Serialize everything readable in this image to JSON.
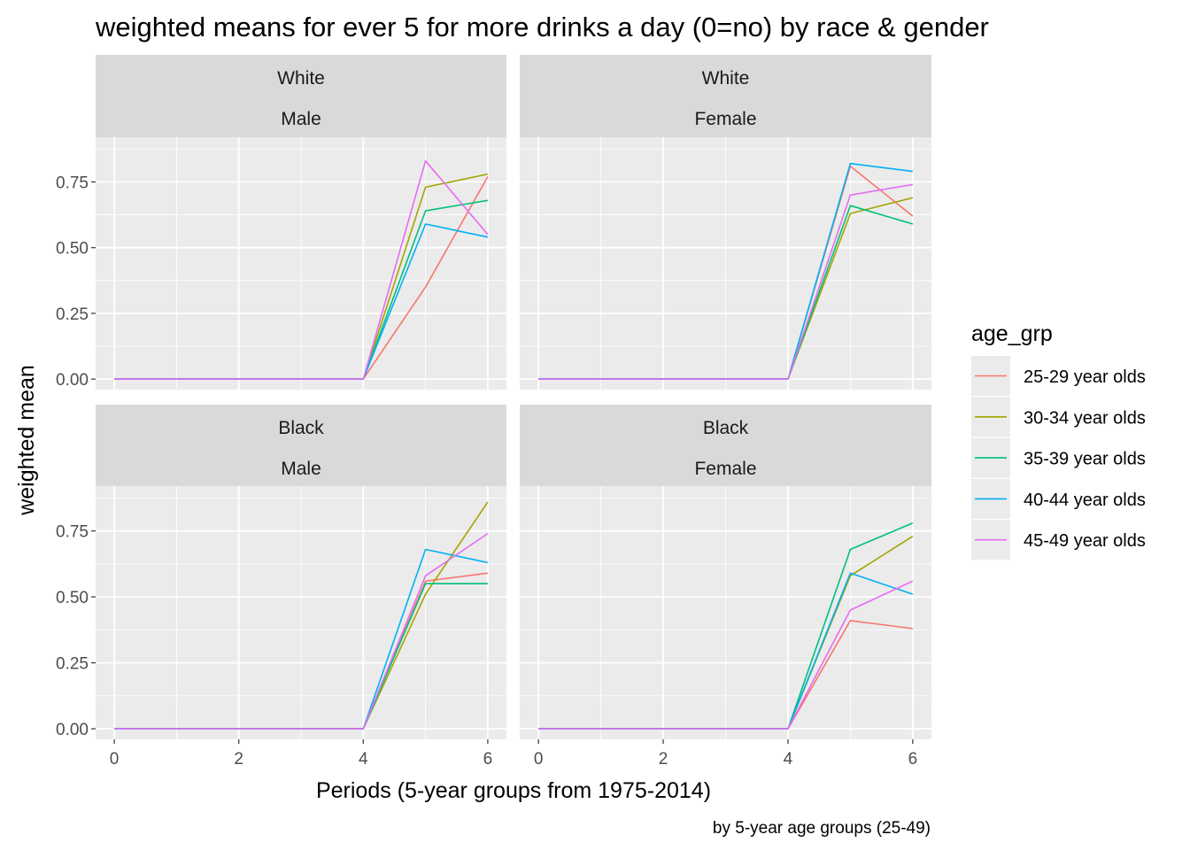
{
  "chart_data": {
    "type": "line",
    "title": "weighted means for ever 5 for more drinks a day (0=no) by race & gender",
    "xlabel": "Periods (5-year groups from 1975-2014)",
    "ylabel": "weighted mean",
    "caption": "by 5-year age groups (25-49)",
    "xlim": [
      -0.3,
      6.3
    ],
    "ylim": [
      -0.04,
      0.92
    ],
    "x_ticks": [
      0,
      2,
      4,
      6
    ],
    "x_tick_labels": [
      "0",
      "2",
      "4",
      "6"
    ],
    "y_ticks": [
      0,
      0.25,
      0.5,
      0.75
    ],
    "y_tick_labels": [
      "0.00",
      "0.25",
      "0.50",
      "0.75"
    ],
    "grid": true,
    "legend": {
      "title": "age_grp",
      "position": "right",
      "entries": [
        "25-29 year olds",
        "30-34 year olds",
        "35-39 year olds",
        "40-44 year olds",
        "45-49 year olds"
      ],
      "colors": [
        "#F8766D",
        "#A3A500",
        "#00BF7D",
        "#00B0F6",
        "#E76BF3"
      ]
    },
    "x": [
      0,
      1,
      2,
      3,
      4,
      5,
      6
    ],
    "panels": [
      {
        "strip": [
          "White",
          "Male"
        ],
        "series": [
          {
            "name": "25-29 year olds",
            "values": [
              0,
              0,
              0,
              0,
              0,
              0.35,
              0.77
            ]
          },
          {
            "name": "30-34 year olds",
            "values": [
              0,
              0,
              0,
              0,
              0,
              0.73,
              0.78
            ]
          },
          {
            "name": "35-39 year olds",
            "values": [
              0,
              0,
              0,
              0,
              0,
              0.64,
              0.68
            ]
          },
          {
            "name": "40-44 year olds",
            "values": [
              0,
              0,
              0,
              0,
              0,
              0.59,
              0.54
            ]
          },
          {
            "name": "45-49 year olds",
            "values": [
              0,
              0,
              0,
              0,
              0,
              0.83,
              0.55
            ]
          }
        ]
      },
      {
        "strip": [
          "White",
          "Female"
        ],
        "series": [
          {
            "name": "25-29 year olds",
            "values": [
              0,
              0,
              0,
              0,
              0,
              0.81,
              0.62
            ]
          },
          {
            "name": "30-34 year olds",
            "values": [
              0,
              0,
              0,
              0,
              0,
              0.63,
              0.69
            ]
          },
          {
            "name": "35-39 year olds",
            "values": [
              0,
              0,
              0,
              0,
              0,
              0.66,
              0.59
            ]
          },
          {
            "name": "40-44 year olds",
            "values": [
              0,
              0,
              0,
              0,
              0,
              0.82,
              0.79
            ]
          },
          {
            "name": "45-49 year olds",
            "values": [
              0,
              0,
              0,
              0,
              0,
              0.7,
              0.74
            ]
          }
        ]
      },
      {
        "strip": [
          "Black",
          "Male"
        ],
        "series": [
          {
            "name": "25-29 year olds",
            "values": [
              0,
              0,
              0,
              0,
              0,
              0.56,
              0.59
            ]
          },
          {
            "name": "30-34 year olds",
            "values": [
              0,
              0,
              0,
              0,
              0,
              0.51,
              0.86
            ]
          },
          {
            "name": "35-39 year olds",
            "values": [
              0,
              0,
              0,
              0,
              0,
              0.55,
              0.55
            ]
          },
          {
            "name": "40-44 year olds",
            "values": [
              0,
              0,
              0,
              0,
              0,
              0.68,
              0.63
            ]
          },
          {
            "name": "45-49 year olds",
            "values": [
              0,
              0,
              0,
              0,
              0,
              0.58,
              0.74
            ]
          }
        ]
      },
      {
        "strip": [
          "Black",
          "Female"
        ],
        "series": [
          {
            "name": "25-29 year olds",
            "values": [
              0,
              0,
              0,
              0,
              0,
              0.41,
              0.38
            ]
          },
          {
            "name": "30-34 year olds",
            "values": [
              0,
              0,
              0,
              0,
              0,
              0.58,
              0.73
            ]
          },
          {
            "name": "35-39 year olds",
            "values": [
              0,
              0,
              0,
              0,
              0,
              0.68,
              0.78
            ]
          },
          {
            "name": "40-44 year olds",
            "values": [
              0,
              0,
              0,
              0,
              0,
              0.59,
              0.51
            ]
          },
          {
            "name": "45-49 year olds",
            "values": [
              0,
              0,
              0,
              0,
              0,
              0.45,
              0.56
            ]
          }
        ]
      }
    ]
  }
}
